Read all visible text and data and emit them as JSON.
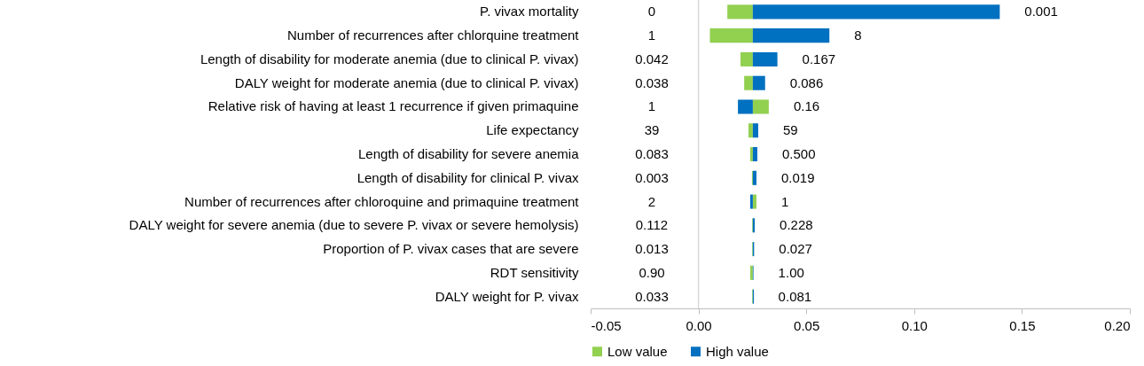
{
  "chart_data": {
    "type": "bar",
    "orientation": "horizontal",
    "categories": [
      "P. vivax mortality",
      "Number of recurrences after chlorquine treatment",
      "Length of disability for moderate anemia (due to clinical P. vivax)",
      "DALY weight for moderate anemia (due to clinical P. vivax)",
      "Relative risk of having at least 1 recurrence if given primaquine",
      "Life expectancy",
      "Length of disability for severe anemia",
      "Length of disability for clinical P. vivax",
      "Number of recurrences after chloroquine and primaquine treatment",
      "DALY weight for severe anemia (due to severe P. vivax or severe hemolysis)",
      "Proportion of P. vivax cases that are severe",
      "RDT sensitivity",
      "DALY weight for P. vivax"
    ],
    "series": [
      {
        "name": "Low value",
        "color": "#92d050",
        "base": [
          0.0252,
          0.0252,
          0.0252,
          0.0252,
          0.0252,
          0.0252,
          0.0252,
          0.0252,
          0.0252,
          0.0252,
          0.0252,
          0.0252,
          0.0252
        ],
        "values": [
          -0.0118,
          -0.0199,
          -0.0057,
          -0.004,
          0.0074,
          -0.002,
          -0.0012,
          -0.0004,
          0.0017,
          -0.0003,
          -0.0003,
          -0.0012,
          -0.0003
        ]
      },
      {
        "name": "High value",
        "color": "#0070c0",
        "base": [
          0.0252,
          0.0252,
          0.0252,
          0.0252,
          0.0252,
          0.0252,
          0.0252,
          0.0252,
          0.0252,
          0.0252,
          0.0252,
          0.0252,
          0.0252
        ],
        "values": [
          0.1145,
          0.0355,
          0.0114,
          0.0057,
          -0.0069,
          0.0025,
          0.0021,
          0.0017,
          -0.0012,
          0.0009,
          0.0006,
          0.0003,
          0.0005
        ]
      }
    ],
    "annotations": [
      "0",
      "1",
      "0.042",
      "0.038",
      "1",
      "39",
      "0.083",
      "0.003",
      "2",
      "0.112",
      "0.013",
      "0.90",
      "0.033",
      {
        "text": "0.001",
        "x": 0.1397,
        "y": "P. vivax mortality"
      },
      {
        "text": "8",
        "x": 0.0607,
        "y": "Number of recurrences after chlorquine treatment"
      },
      {
        "text": "0.167",
        "x": 0.0366,
        "y": "Length of disability for moderate anemia (due to clinical P. vivax)"
      },
      {
        "text": "0.086",
        "x": 0.0309,
        "y": "DALY weight for moderate anemia (due to clinical P. vivax)"
      },
      {
        "text": "0.16",
        "x": 0.0326,
        "y": "Relative risk of having at least 1 recurrence if given primaquine"
      },
      {
        "text": "59",
        "x": 0.0277,
        "y": "Life expectancy"
      },
      {
        "text": "0.500",
        "x": 0.0273,
        "y": "Length of disability for severe anemia"
      },
      {
        "text": "0.019",
        "x": 0.0269,
        "y": "Length of disability for clinical P. vivax"
      },
      {
        "text": "1",
        "x": 0.0269,
        "y": "Number of recurrences after chloroquine and primaquine treatment"
      },
      {
        "text": "0.228",
        "x": 0.0261,
        "y": "DALY weight for severe anemia (due to severe P. vivax or severe hemolysis)"
      },
      {
        "text": "0.027",
        "x": 0.0258,
        "y": "Proportion of P. vivax cases that are severe"
      },
      {
        "text": "1.00",
        "x": 0.0255,
        "y": "RDT sensitivity"
      },
      {
        "text": "0.081",
        "x": 0.0255,
        "y": "DALY weight for P. vivax"
      }
    ],
    "xlim": [
      -0.05,
      0.2
    ],
    "xticks": [
      {
        "value": -0.05,
        "label": "-0.05"
      },
      {
        "value": 0,
        "label": "0.00"
      },
      {
        "value": 0.05,
        "label": "0.05"
      },
      {
        "value": 0.1,
        "label": "0.10"
      },
      {
        "value": 0.15,
        "label": "0.15"
      },
      {
        "value": 0.2,
        "label": "0.20"
      }
    ],
    "ref_lines": [
      {
        "axis": "x",
        "value": 0,
        "color": "#d9d9d9"
      }
    ],
    "grid": false,
    "legend": "bottom"
  }
}
